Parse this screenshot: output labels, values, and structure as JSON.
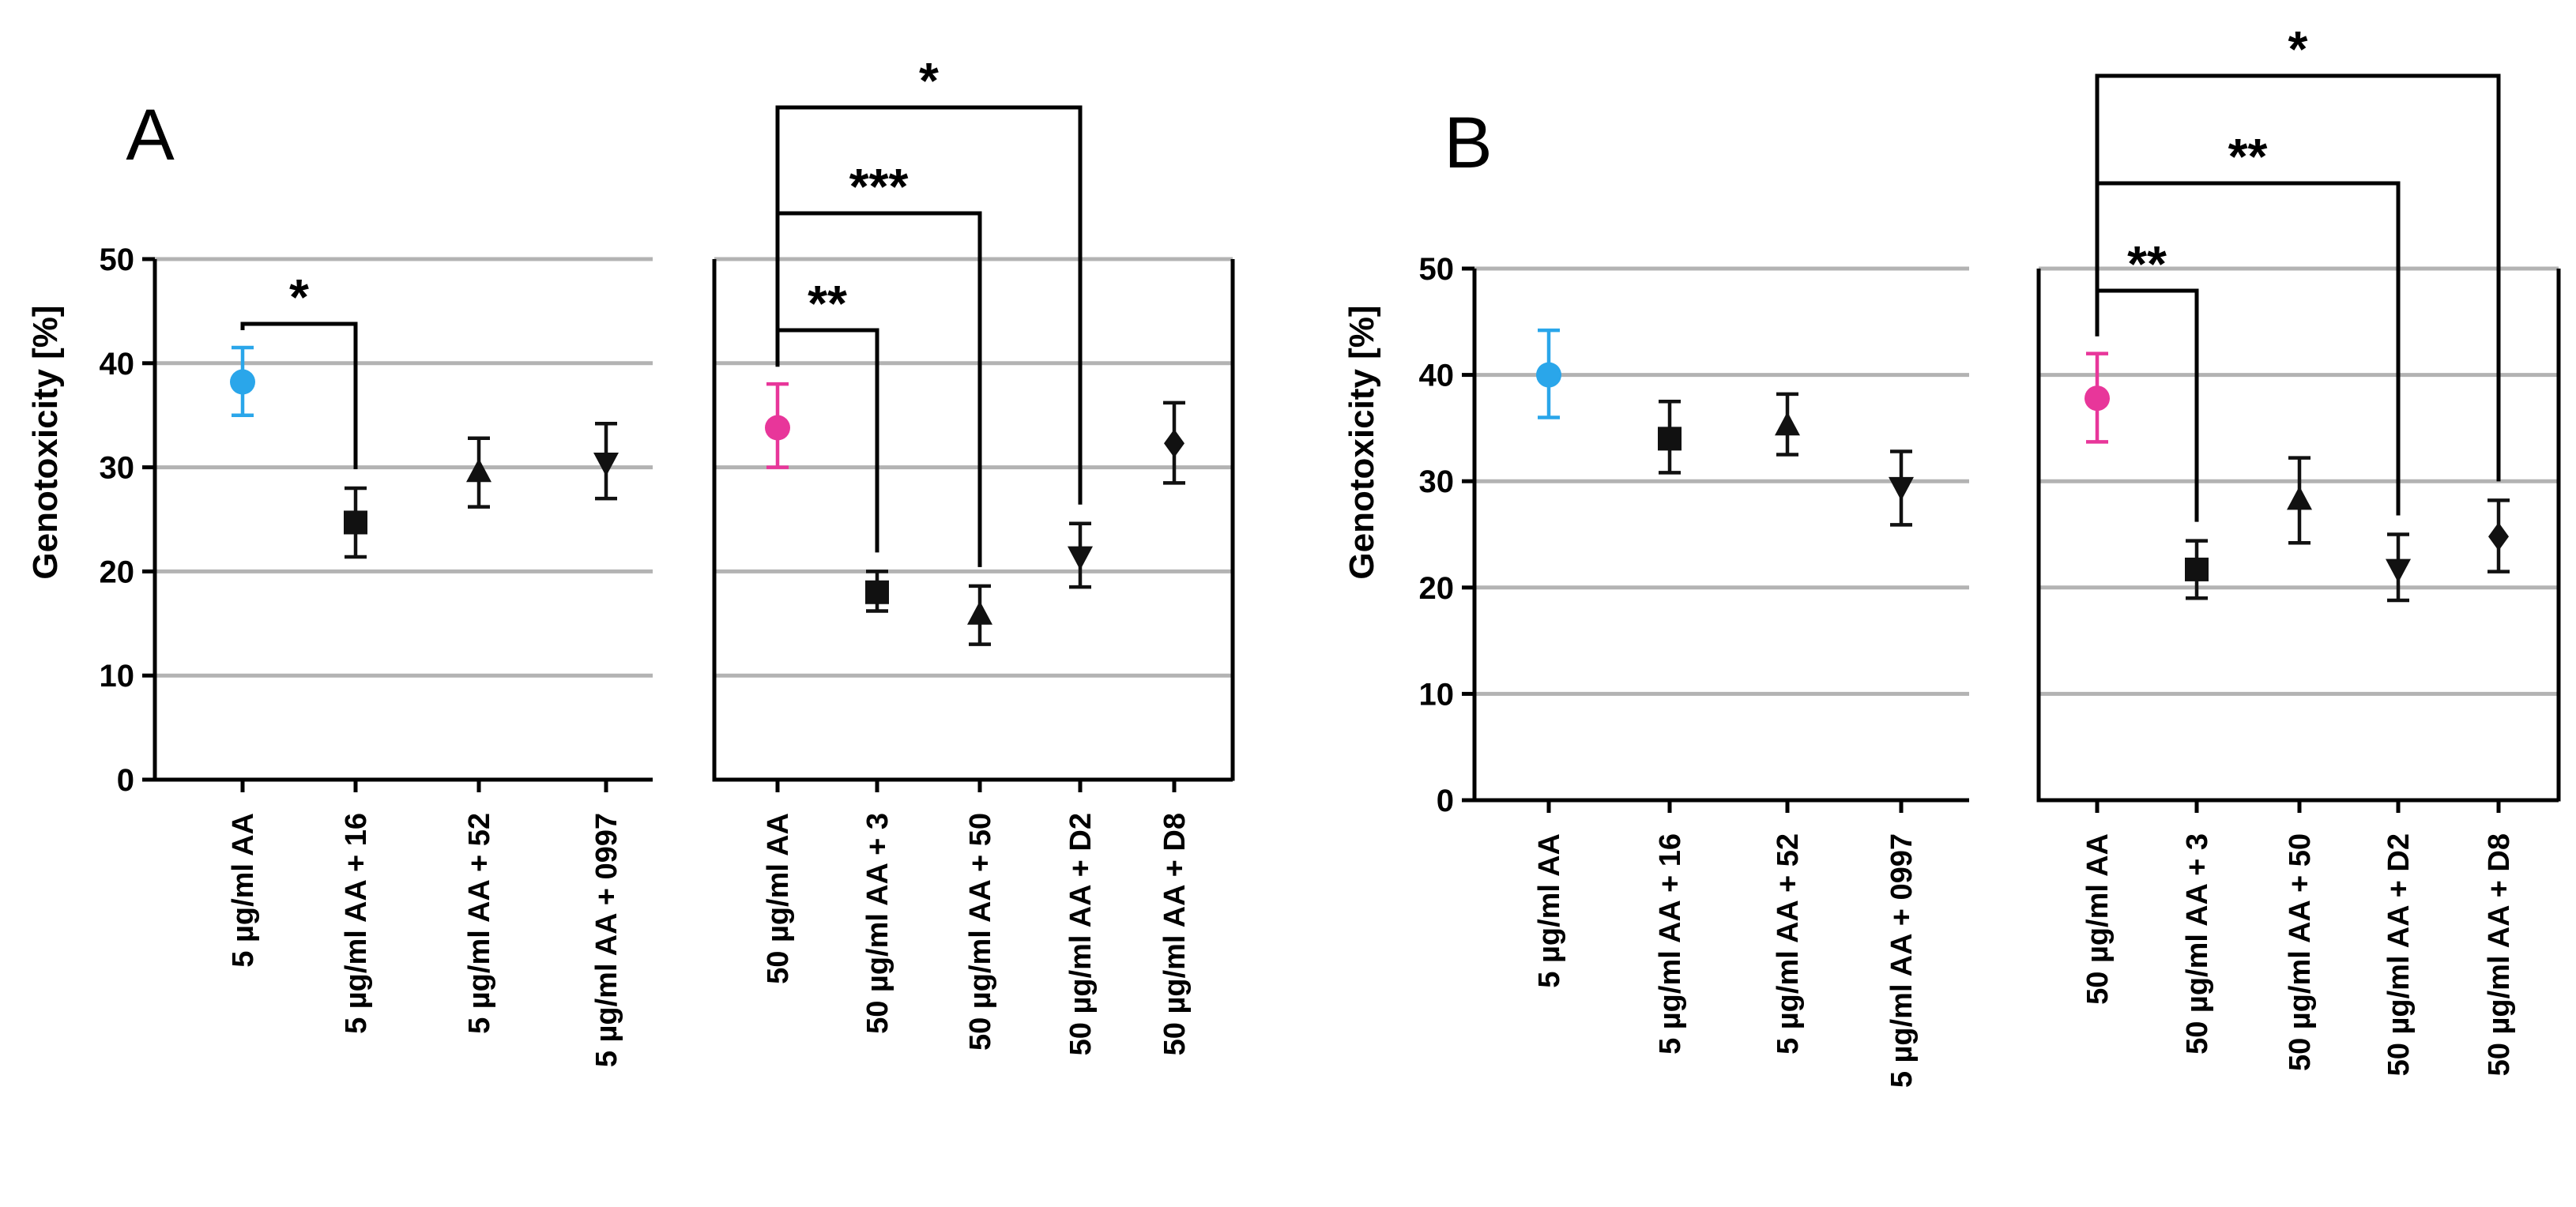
{
  "chart_data": [
    {
      "type": "scatter",
      "panel": "A",
      "ylabel": "Genotoxicity [%]",
      "ylim": [
        0,
        50
      ],
      "yticks": [
        0,
        10,
        20,
        30,
        40,
        50
      ],
      "grid": true,
      "groups": [
        {
          "points": [
            {
              "label": "5 µg/ml AA",
              "mean": 38.2,
              "low": 35.0,
              "high": 41.5,
              "marker": "circle",
              "color": "#2aa6ea"
            },
            {
              "label": "5 µg/ml AA + 16",
              "mean": 24.7,
              "low": 21.4,
              "high": 28.0,
              "marker": "square",
              "color": "#111111"
            },
            {
              "label": "5 µg/ml AA + 52",
              "mean": 29.5,
              "low": 26.2,
              "high": 32.8,
              "marker": "triangle-up",
              "color": "#111111"
            },
            {
              "label": "5 µg/ml AA + 0997",
              "mean": 30.5,
              "low": 27.0,
              "high": 34.2,
              "marker": "triangle-down",
              "color": "#111111"
            }
          ],
          "brackets": [
            {
              "from": 0,
              "to": 1,
              "label": "*",
              "level": 0
            }
          ]
        },
        {
          "points": [
            {
              "label": "50 µg/ml AA",
              "mean": 33.8,
              "low": 30.0,
              "high": 38.0,
              "marker": "circle",
              "color": "#e8369a"
            },
            {
              "label": "50 µg/ml AA + 3",
              "mean": 18.0,
              "low": 16.2,
              "high": 20.0,
              "marker": "square",
              "color": "#111111"
            },
            {
              "label": "50 µg/ml AA + 50",
              "mean": 15.8,
              "low": 13.0,
              "high": 18.6,
              "marker": "triangle-up",
              "color": "#111111"
            },
            {
              "label": "50 µg/ml AA + D2",
              "mean": 21.5,
              "low": 18.5,
              "high": 24.6,
              "marker": "triangle-down",
              "color": "#111111"
            },
            {
              "label": "50 µg/ml AA + D8",
              "mean": 32.3,
              "low": 28.5,
              "high": 36.2,
              "marker": "diamond",
              "color": "#111111"
            }
          ],
          "brackets": [
            {
              "from": 0,
              "to": 1,
              "label": "**",
              "level": 0
            },
            {
              "from": 0,
              "to": 2,
              "label": "***",
              "level": 1
            },
            {
              "from": 0,
              "to": 3,
              "label": "*",
              "level": 2
            }
          ]
        }
      ]
    },
    {
      "type": "scatter",
      "panel": "B",
      "ylabel": "Genotoxicity [%]",
      "ylim": [
        0,
        50
      ],
      "yticks": [
        0,
        10,
        20,
        30,
        40,
        50
      ],
      "grid": true,
      "groups": [
        {
          "points": [
            {
              "label": "5 µg/ml AA",
              "mean": 40.0,
              "low": 36.0,
              "high": 44.2,
              "marker": "circle",
              "color": "#2aa6ea"
            },
            {
              "label": "5 µg/ml AA + 16",
              "mean": 34.0,
              "low": 30.8,
              "high": 37.5,
              "marker": "square",
              "color": "#111111"
            },
            {
              "label": "5 µg/ml AA + 52",
              "mean": 35.2,
              "low": 32.5,
              "high": 38.2,
              "marker": "triangle-up",
              "color": "#111111"
            },
            {
              "label": "5 µg/ml AA + 0997",
              "mean": 29.5,
              "low": 25.9,
              "high": 32.8,
              "marker": "triangle-down",
              "color": "#111111"
            }
          ],
          "brackets": []
        },
        {
          "points": [
            {
              "label": "50 µg/ml AA",
              "mean": 37.8,
              "low": 33.7,
              "high": 42.0,
              "marker": "circle",
              "color": "#e8369a"
            },
            {
              "label": "50 µg/ml AA + 3",
              "mean": 21.7,
              "low": 19.0,
              "high": 24.4,
              "marker": "square",
              "color": "#111111"
            },
            {
              "label": "50 µg/ml AA + 50",
              "mean": 28.2,
              "low": 24.2,
              "high": 32.2,
              "marker": "triangle-up",
              "color": "#111111"
            },
            {
              "label": "50 µg/ml AA + D2",
              "mean": 21.8,
              "low": 18.8,
              "high": 25.0,
              "marker": "triangle-down",
              "color": "#111111"
            },
            {
              "label": "50 µg/ml AA + D8",
              "mean": 24.8,
              "low": 21.5,
              "high": 28.2,
              "marker": "diamond",
              "color": "#111111"
            }
          ],
          "brackets": [
            {
              "from": 0,
              "to": 1,
              "label": "**",
              "level": 0
            },
            {
              "from": 0,
              "to": 3,
              "label": "**",
              "level": 1
            },
            {
              "from": 0,
              "to": 4,
              "label": "*",
              "level": 2
            }
          ]
        }
      ]
    }
  ],
  "colors": {
    "axis": "#000000",
    "grid": "#b3b3b3",
    "error_bar_default": "#111111"
  }
}
